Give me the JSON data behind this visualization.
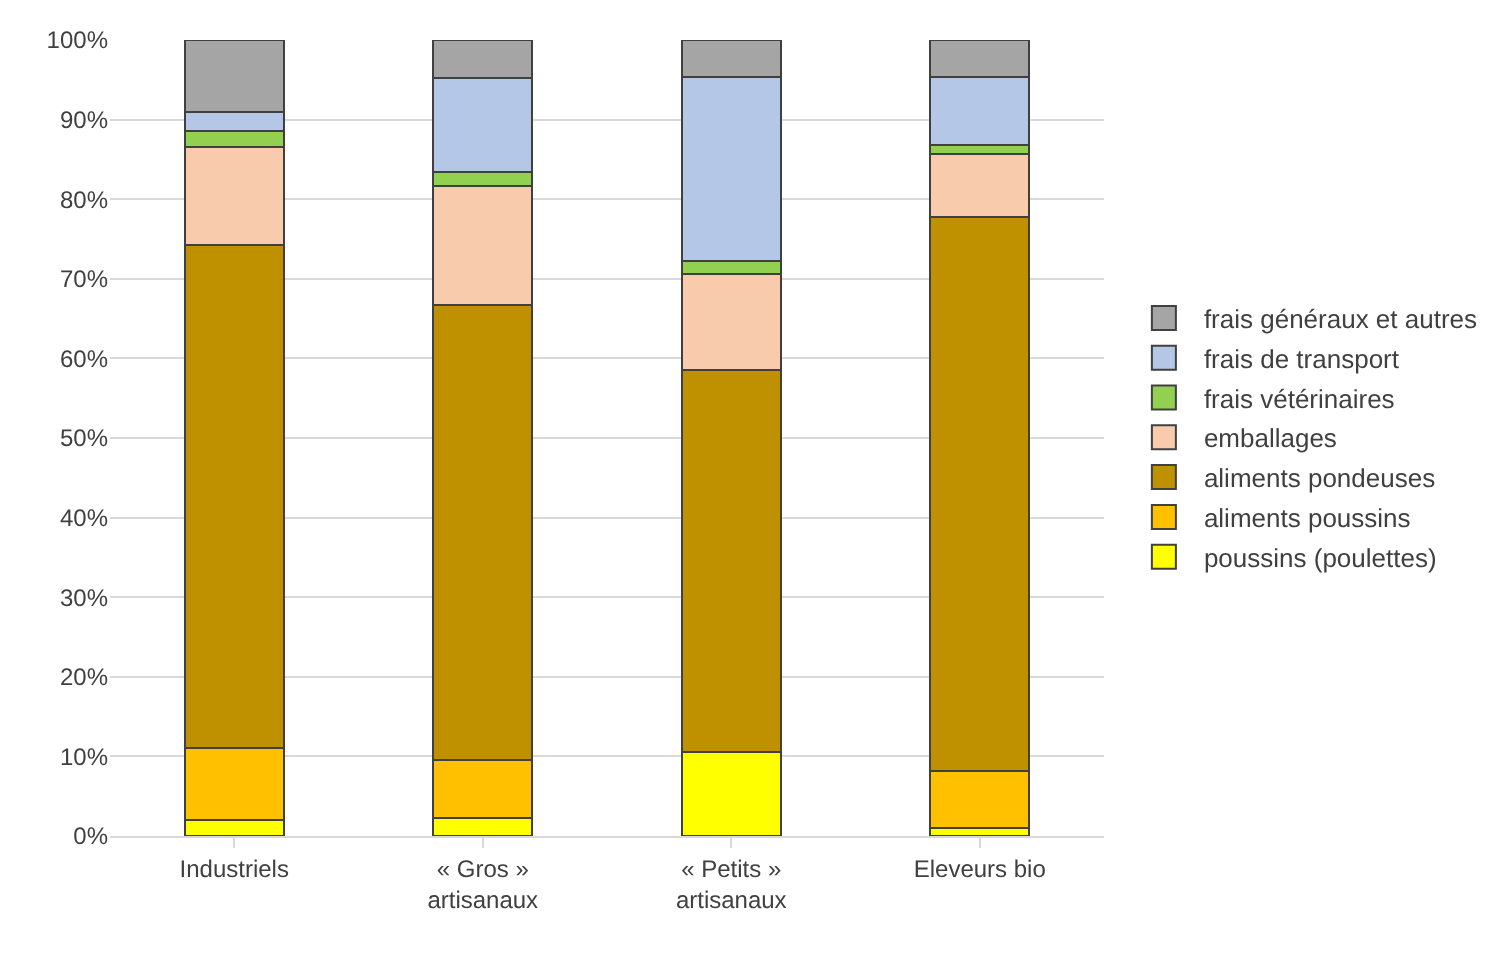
{
  "chart_data": {
    "type": "bar",
    "stacked": true,
    "categories": [
      "Industriels",
      "« Gros »\nartisanaux",
      "« Petits »\nartisanaux",
      "Eleveurs bio"
    ],
    "series": [
      {
        "name": "poussins (poulettes)",
        "color": "#ffff00",
        "values": [
          2,
          2.3,
          10.6,
          1
        ]
      },
      {
        "name": "aliments poussins",
        "color": "#ffc000",
        "values": [
          9,
          7.2,
          0,
          7.2
        ]
      },
      {
        "name": "aliments pondeuses",
        "color": "#bf9000",
        "values": [
          63.2,
          57.2,
          47.9,
          69.6
        ]
      },
      {
        "name": "emballages",
        "color": "#f8cbad",
        "values": [
          12.3,
          14.9,
          12.1,
          7.9
        ]
      },
      {
        "name": "frais vétérinaires",
        "color": "#92d050",
        "values": [
          2.1,
          1.8,
          1.7,
          1.1
        ]
      },
      {
        "name": "frais de transport",
        "color": "#b4c7e7",
        "values": [
          2.4,
          11.8,
          23,
          8.5
        ]
      },
      {
        "name": "frais généraux et autres",
        "color": "#a5a5a5",
        "values": [
          9,
          4.8,
          4.7,
          4.7
        ]
      }
    ],
    "ylim": [
      0,
      100
    ],
    "yticks": [
      {
        "value": 0,
        "label": "0%"
      },
      {
        "value": 10,
        "label": "10%"
      },
      {
        "value": 20,
        "label": "20%"
      },
      {
        "value": 30,
        "label": "30%"
      },
      {
        "value": 40,
        "label": "40%"
      },
      {
        "value": 50,
        "label": "50%"
      },
      {
        "value": 60,
        "label": "60%"
      },
      {
        "value": 70,
        "label": "70%"
      },
      {
        "value": 80,
        "label": "80%"
      },
      {
        "value": 90,
        "label": "90%"
      },
      {
        "value": 100,
        "label": "100%"
      }
    ],
    "grid": "y",
    "legend": "right"
  }
}
